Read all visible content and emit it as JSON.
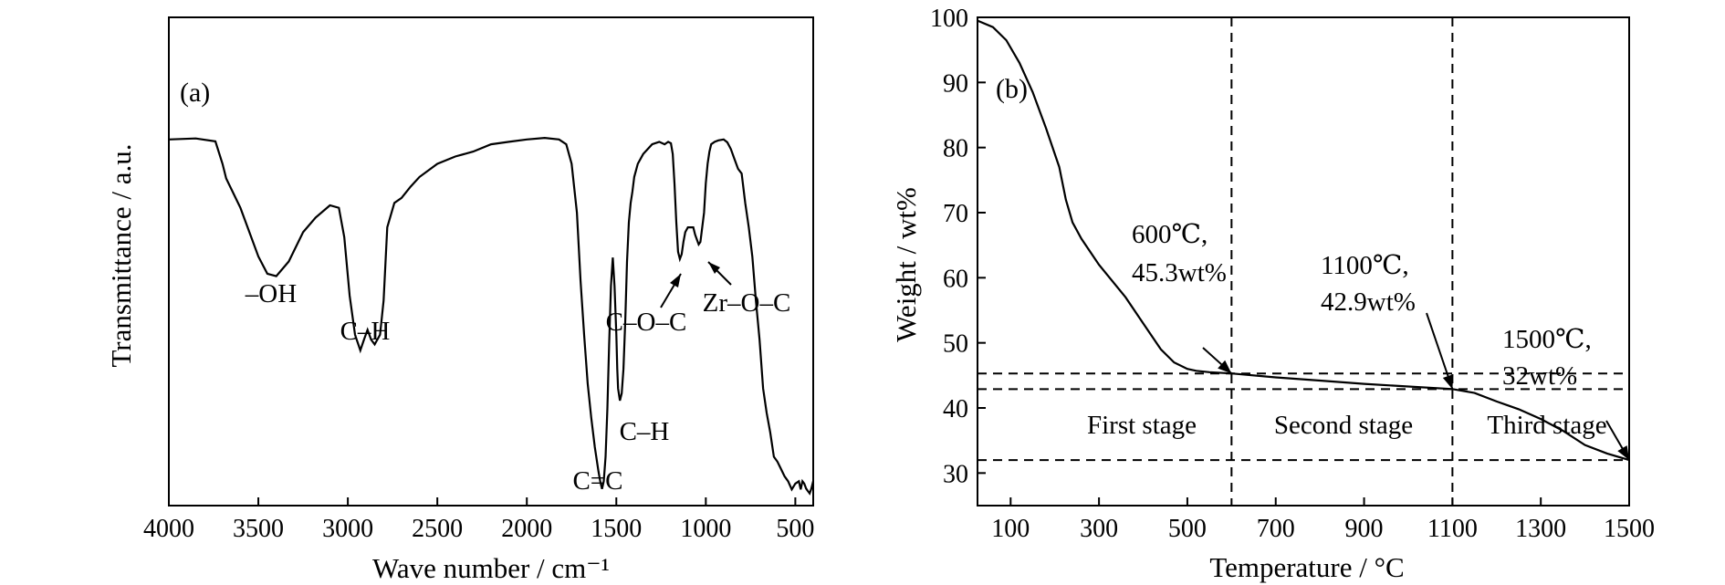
{
  "chart_data": [
    {
      "type": "line",
      "panel_label": "(a)",
      "xlabel": "Wave number / cm⁻¹",
      "ylabel": "Transmittance / a.u.",
      "xlim": [
        4000,
        400
      ],
      "x_reversed": true,
      "ylim": [
        0,
        100
      ],
      "y_ticks_shown": false,
      "x_ticks": [
        "4000",
        "3500",
        "3000",
        "2500",
        "2000",
        "1500",
        "1000",
        "500"
      ],
      "series": [
        {
          "x": [
            4000,
            3850,
            3740,
            3700,
            3680,
            3600,
            3500,
            3450,
            3400,
            3330,
            3250,
            3180,
            3100,
            3050,
            3020,
            2990,
            2960,
            2930,
            2910,
            2890,
            2870,
            2850,
            2820,
            2800,
            2780,
            2740,
            2700,
            2650,
            2600,
            2500,
            2400,
            2300,
            2200,
            2100,
            2000,
            1900,
            1820,
            1780,
            1750,
            1720,
            1700,
            1680,
            1660,
            1640,
            1620,
            1600,
            1590,
            1580,
            1570,
            1560,
            1550,
            1540,
            1530,
            1520,
            1510,
            1500,
            1495,
            1490,
            1480,
            1470,
            1460,
            1450,
            1440,
            1430,
            1420,
            1410,
            1400,
            1380,
            1350,
            1300,
            1260,
            1230,
            1210,
            1195,
            1185,
            1175,
            1165,
            1155,
            1145,
            1135,
            1125,
            1115,
            1100,
            1080,
            1070,
            1060,
            1050,
            1040,
            1030,
            1020,
            1010,
            1000,
            990,
            980,
            970,
            950,
            930,
            900,
            880,
            860,
            840,
            820,
            800,
            780,
            760,
            740,
            720,
            700,
            680,
            660,
            640,
            620,
            600,
            580,
            560,
            540,
            520,
            500,
            480,
            470,
            460,
            450,
            440,
            430,
            420,
            410,
            400
          ],
          "y": [
            75,
            75.2,
            74.6,
            70,
            67,
            61,
            51,
            47.5,
            47,
            50,
            56,
            59,
            61.5,
            61,
            55,
            43,
            35,
            31.8,
            34,
            36,
            34,
            33,
            35,
            42,
            57,
            62,
            63,
            65.3,
            67.3,
            70,
            71.5,
            72.5,
            74,
            74.5,
            75,
            75.3,
            75,
            74,
            70,
            60,
            46,
            35,
            25,
            18,
            12,
            7,
            5,
            3.4,
            5,
            10,
            20,
            33,
            45,
            50.8,
            45,
            35,
            28,
            24,
            21.5,
            23,
            28,
            38,
            50,
            58,
            62,
            64.3,
            67.3,
            70,
            72,
            74,
            74.5,
            74,
            74.5,
            74.2,
            72,
            66,
            58,
            52,
            50.5,
            51.5,
            54,
            56,
            57,
            57,
            57,
            55.5,
            54.5,
            53.5,
            54,
            57,
            60,
            66,
            70,
            72.5,
            74,
            74.5,
            74.8,
            75,
            74.4,
            73,
            71,
            69,
            68,
            62,
            57,
            51,
            42,
            34,
            24,
            19,
            15,
            10,
            9,
            7.5,
            6,
            5,
            3.3,
            4.5,
            5,
            3.3,
            5,
            4.5,
            3.5,
            3,
            2.5,
            3.5,
            5
          ]
        }
      ],
      "annotations": [
        "–OH",
        "C–H",
        "C–H",
        "C=C",
        "C–O–C",
        "Zr–O–C"
      ]
    },
    {
      "type": "line",
      "panel_label": "(b)",
      "xlabel": "Temperature  / °C",
      "ylabel": "Weight  / wt%",
      "xlim": [
        25,
        1500
      ],
      "ylim": [
        25,
        100
      ],
      "x_ticks": [
        "100",
        "300",
        "500",
        "700",
        "900",
        "1100",
        "1300",
        "1500"
      ],
      "y_ticks": [
        "30",
        "40",
        "50",
        "60",
        "70",
        "80",
        "90",
        "100"
      ],
      "series": [
        {
          "x": [
            25,
            60,
            90,
            120,
            150,
            180,
            210,
            225,
            240,
            260,
            300,
            360,
            400,
            440,
            470,
            500,
            520,
            550,
            600,
            700,
            800,
            900,
            1000,
            1100,
            1150,
            1200,
            1250,
            1300,
            1350,
            1400,
            1450,
            1500
          ],
          "y": [
            99.5,
            98.5,
            96.5,
            93,
            88.5,
            83,
            77,
            72,
            68.5,
            66,
            62,
            57,
            53,
            49,
            47,
            46,
            45.7,
            45.5,
            45.3,
            44.7,
            44.2,
            43.7,
            43.3,
            42.9,
            42.3,
            41,
            39.8,
            38.3,
            36.5,
            34.3,
            33,
            32
          ]
        }
      ],
      "reference_lines": {
        "vertical": [
          600,
          1100
        ],
        "horizontal": [
          45.3,
          42.9,
          32
        ]
      },
      "annotations": [
        {
          "label": "600℃,",
          "value": "45.3wt%",
          "x": 600,
          "y": 45.3
        },
        {
          "label": "1100℃,",
          "value": "42.9wt%",
          "x": 1100,
          "y": 42.9
        },
        {
          "label": "1500℃,",
          "value": "32wt%",
          "x": 1500,
          "y": 32
        }
      ],
      "stages": [
        {
          "label": "First stage",
          "x": 400
        },
        {
          "label": "Second stage",
          "x": 850
        },
        {
          "label": "Third stage",
          "x": 1310
        }
      ],
      "stage_color": "#e05050"
    }
  ]
}
